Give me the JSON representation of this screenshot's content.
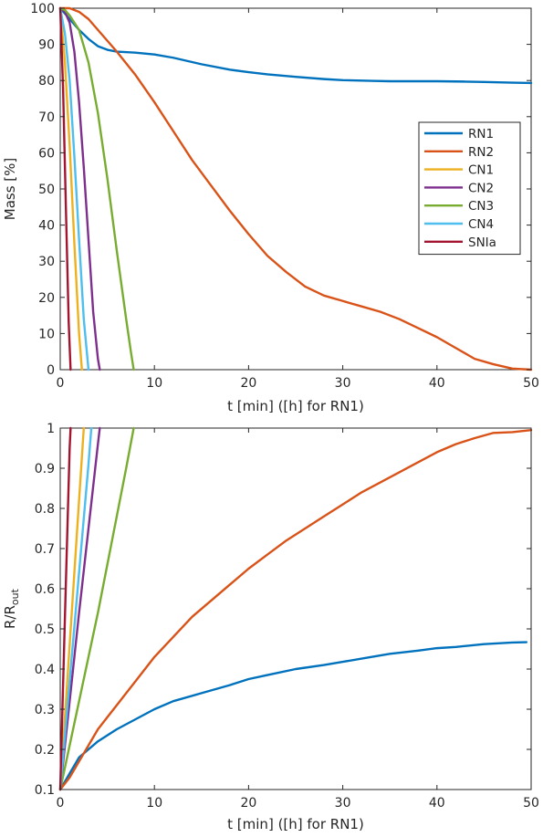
{
  "chart_data": [
    {
      "type": "line",
      "xlabel": "t [min] ([h] for RN1)",
      "ylabel": "Mass [%]",
      "xlim": [
        0,
        50
      ],
      "ylim": [
        0,
        100
      ],
      "xticks": [
        "0",
        "10",
        "20",
        "30",
        "40",
        "50"
      ],
      "yticks": [
        "0",
        "10",
        "20",
        "30",
        "40",
        "50",
        "60",
        "70",
        "80",
        "90",
        "100"
      ],
      "legend": "center-right",
      "grid": false,
      "series": [
        {
          "name": "RN1",
          "color": "#0072BD",
          "x": [
            0,
            1,
            2,
            3,
            4,
            5,
            6,
            8,
            10,
            12,
            15,
            18,
            20,
            22,
            25,
            28,
            30,
            33,
            35,
            38,
            40,
            43,
            45,
            48,
            50
          ],
          "y": [
            100,
            97,
            94,
            91.5,
            89.5,
            88.5,
            88,
            87.7,
            87.2,
            86.3,
            84.5,
            83,
            82.3,
            81.7,
            81,
            80.4,
            80.1,
            79.9,
            79.8,
            79.8,
            79.8,
            79.7,
            79.6,
            79.4,
            79.3
          ]
        },
        {
          "name": "RN2",
          "color": "#D95319",
          "x": [
            0,
            1,
            2,
            3,
            4,
            5,
            6,
            8,
            10,
            12,
            14,
            16,
            18,
            20,
            22,
            24,
            26,
            28,
            30,
            32,
            34,
            36,
            38,
            40,
            42,
            44,
            46,
            48,
            50
          ],
          "y": [
            100,
            100,
            99,
            97,
            94,
            91,
            88,
            81.5,
            74,
            66,
            58,
            51,
            44,
            37.5,
            31.5,
            27,
            23,
            20.5,
            19,
            17.5,
            16,
            14,
            11.5,
            9,
            6,
            3,
            1.5,
            0.3,
            0
          ]
        },
        {
          "name": "CN1",
          "color": "#EDB120",
          "x": [
            0,
            0.5,
            1,
            1.5,
            2,
            2.3
          ],
          "y": [
            100,
            85,
            62,
            35,
            10,
            0
          ]
        },
        {
          "name": "CN2",
          "color": "#7E2F8E",
          "x": [
            0,
            0.5,
            1,
            1.5,
            2,
            2.5,
            3,
            3.5,
            4,
            4.2
          ],
          "y": [
            100,
            99,
            96,
            88,
            74,
            56,
            36,
            16,
            3,
            0
          ]
        },
        {
          "name": "CN3",
          "color": "#77AC30",
          "x": [
            0,
            0.5,
            1,
            2,
            3,
            4,
            5,
            6,
            7,
            7.5,
            7.8
          ],
          "y": [
            100,
            99.5,
            98,
            94,
            85,
            71,
            53,
            33,
            14,
            5,
            0
          ]
        },
        {
          "name": "CN4",
          "color": "#4DBEEE",
          "x": [
            0,
            0.5,
            1,
            1.5,
            2,
            2.5,
            3
          ],
          "y": [
            100,
            93,
            80,
            59,
            36,
            14,
            0
          ]
        },
        {
          "name": "SNIa",
          "color": "#A2142F",
          "x": [
            0,
            0.3,
            0.6,
            0.9,
            1.1
          ],
          "y": [
            100,
            78,
            45,
            13,
            0
          ]
        }
      ]
    },
    {
      "type": "line",
      "xlabel": "t [min] ([h] for RN1)",
      "ylabel": "R/R",
      "ylabel_sub": "out",
      "xlim": [
        0,
        50
      ],
      "ylim": [
        0.1,
        1
      ],
      "xticks": [
        "0",
        "10",
        "20",
        "30",
        "40",
        "50"
      ],
      "yticks": [
        "0.1",
        "0.2",
        "0.3",
        "0.4",
        "0.5",
        "0.6",
        "0.7",
        "0.8",
        "0.9",
        "1"
      ],
      "grid": false,
      "series": [
        {
          "name": "RN1",
          "color": "#0072BD",
          "x": [
            0,
            0.5,
            1,
            2,
            3,
            4,
            5,
            6,
            8,
            10,
            12,
            15,
            18,
            20,
            22,
            25,
            28,
            30,
            33,
            35,
            38,
            40,
            42,
            45,
            48,
            49.5
          ],
          "y": [
            0.1,
            0.12,
            0.14,
            0.18,
            0.2,
            0.22,
            0.235,
            0.25,
            0.275,
            0.3,
            0.32,
            0.34,
            0.36,
            0.375,
            0.385,
            0.4,
            0.41,
            0.418,
            0.43,
            0.438,
            0.446,
            0.452,
            0.455,
            0.462,
            0.466,
            0.467
          ]
        },
        {
          "name": "RN2",
          "color": "#D95319",
          "x": [
            0,
            1,
            2,
            3,
            4,
            5,
            6,
            8,
            10,
            12,
            14,
            16,
            18,
            20,
            22,
            24,
            26,
            28,
            30,
            32,
            34,
            36,
            38,
            40,
            42,
            44,
            46,
            48,
            50
          ],
          "y": [
            0.1,
            0.13,
            0.17,
            0.21,
            0.25,
            0.28,
            0.31,
            0.37,
            0.43,
            0.48,
            0.53,
            0.57,
            0.61,
            0.65,
            0.685,
            0.72,
            0.75,
            0.78,
            0.81,
            0.84,
            0.865,
            0.89,
            0.915,
            0.94,
            0.96,
            0.975,
            0.988,
            0.99,
            0.995
          ]
        },
        {
          "name": "CN1",
          "color": "#EDB120",
          "x": [
            0,
            0.5,
            1,
            1.5,
            2,
            2.5
          ],
          "y": [
            0.1,
            0.28,
            0.46,
            0.64,
            0.82,
            1.0
          ]
        },
        {
          "name": "CN2",
          "color": "#7E2F8E",
          "x": [
            0,
            1,
            2,
            3,
            4,
            4.2
          ],
          "y": [
            0.1,
            0.32,
            0.54,
            0.75,
            0.96,
            1.0
          ]
        },
        {
          "name": "CN3",
          "color": "#77AC30",
          "x": [
            0,
            1,
            2,
            3,
            4,
            5,
            6,
            7,
            7.8
          ],
          "y": [
            0.1,
            0.21,
            0.32,
            0.43,
            0.54,
            0.66,
            0.78,
            0.9,
            1.0
          ]
        },
        {
          "name": "CN4",
          "color": "#4DBEEE",
          "x": [
            0,
            1,
            2,
            3,
            3.3
          ],
          "y": [
            0.1,
            0.37,
            0.64,
            0.91,
            1.0
          ]
        },
        {
          "name": "SNIa",
          "color": "#A2142F",
          "x": [
            0,
            0.5,
            1,
            1.1
          ],
          "y": [
            0.1,
            0.53,
            0.95,
            1.0
          ]
        }
      ]
    }
  ]
}
